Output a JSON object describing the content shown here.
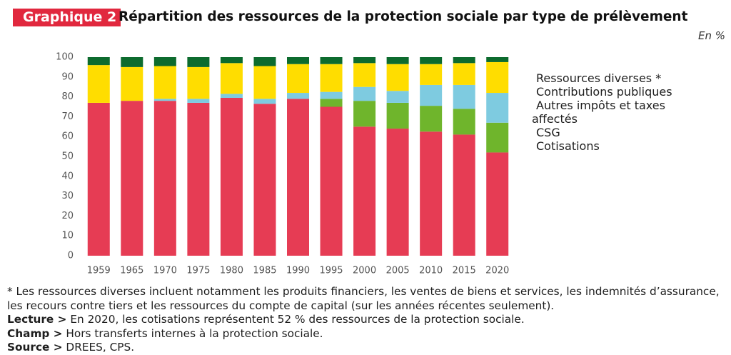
{
  "chart_data": {
    "type": "stacked-bar",
    "figure_label": "Graphique 2",
    "title": "Répartition des ressources de la protection sociale par type de prélèvement",
    "unit": "En %",
    "categories": [
      "1959",
      "1965",
      "1970",
      "1975",
      "1980",
      "1985",
      "1990",
      "1995",
      "2000",
      "2005",
      "2010",
      "2015",
      "2020"
    ],
    "series": [
      {
        "name": "Cotisations",
        "color": "#e63c54",
        "values": [
          77,
          78,
          78,
          77,
          79.5,
          76.5,
          79,
          75,
          65,
          64,
          62.5,
          61,
          52
        ]
      },
      {
        "name": "CSG",
        "color": "#6fb52c",
        "values": [
          0,
          0,
          0,
          0,
          0,
          0,
          0,
          4,
          13,
          13,
          13,
          13,
          15
        ]
      },
      {
        "name": "Autres impôts et taxes affectés",
        "color": "#7ecbe0",
        "values": [
          0,
          0,
          1,
          2,
          2,
          2.5,
          3,
          3.5,
          7,
          6,
          10.5,
          12,
          15
        ]
      },
      {
        "name": "Contributions publiques",
        "color": "#ffdd00",
        "values": [
          19,
          17,
          16.5,
          16,
          15.5,
          16.5,
          14.5,
          14,
          12,
          13.5,
          10.5,
          11,
          15.5
        ]
      },
      {
        "name": "Ressources diverses *",
        "color": "#0d6b2e",
        "values": [
          4,
          5,
          4.5,
          5,
          3,
          4.5,
          3.5,
          3.5,
          3,
          3.5,
          3.5,
          3,
          2.5
        ]
      }
    ],
    "ylim": [
      0,
      100
    ],
    "yticks": [
      0,
      10,
      20,
      30,
      40,
      50,
      60,
      70,
      80,
      90,
      100
    ],
    "grid": false
  },
  "notes": {
    "footnote": "* Les ressources diverses incluent notamment les produits financiers, les ventes de biens et services, les indemnités d’assurance, les recours contre tiers et les ressources du compte de capital (sur les années récentes seulement).",
    "items": [
      {
        "label": "Lecture >",
        "text": "En 2020, les cotisations représentent 52 % des ressources de la protection sociale."
      },
      {
        "label": "Champ >",
        "text": "Hors transferts internes à la protection sociale."
      },
      {
        "label": "Source >",
        "text": "DREES, CPS."
      }
    ]
  }
}
